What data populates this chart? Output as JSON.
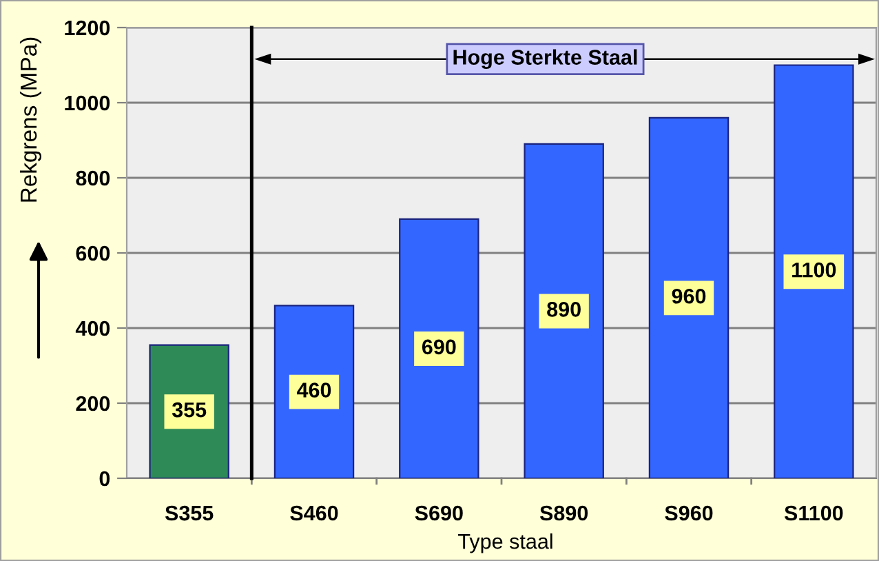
{
  "chart_data": [
    {
      "type": "bar",
      "ylabel": "Rekgrens (MPa)",
      "categories": [
        "S355"
      ],
      "values": [
        355
      ],
      "colors": [
        "#2e8b57"
      ],
      "ylim": [
        0,
        1200
      ],
      "yticks": [
        0,
        200,
        400,
        600,
        800,
        1000,
        1200
      ],
      "grid": "y",
      "data_labels": true
    },
    {
      "type": "bar",
      "xlabel": "Type staal",
      "annotations": [
        "Hoge Sterkte Staal"
      ],
      "categories": [
        "S460",
        "S690",
        "S890",
        "S960",
        "S1100"
      ],
      "values": [
        460,
        690,
        890,
        960,
        1100
      ],
      "colors": [
        "#3366ff",
        "#3366ff",
        "#3366ff",
        "#3366ff",
        "#3366ff"
      ],
      "ylim": [
        0,
        1200
      ],
      "yticks": [
        0,
        200,
        400,
        600,
        800,
        1000,
        1200
      ],
      "grid": "y",
      "data_labels": true,
      "tick_labels": "x"
    }
  ]
}
